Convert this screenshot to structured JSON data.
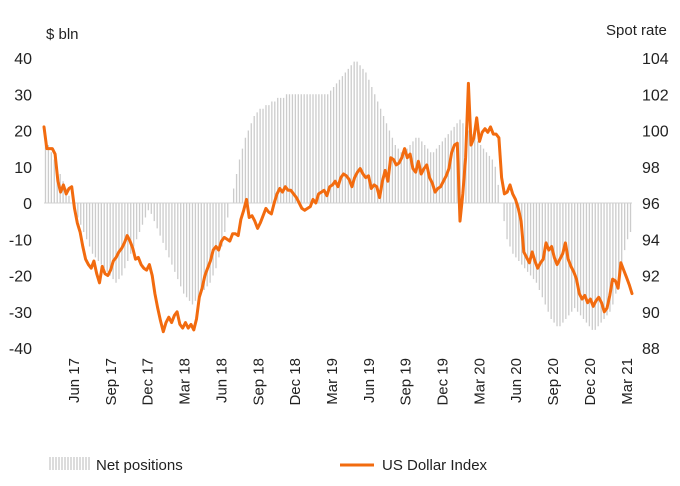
{
  "chart_data": {
    "type": "bar+line",
    "left_axis_label": "$ bln",
    "right_axis_label": "Spot rate",
    "left_ticks": [
      40,
      30,
      20,
      10,
      0,
      -10,
      -20,
      -30,
      -40
    ],
    "right_ticks": [
      104,
      102,
      100,
      98,
      96,
      94,
      92,
      90,
      88
    ],
    "ylim_left": [
      -40,
      40
    ],
    "ylim_right": [
      88,
      104
    ],
    "x_ticks": [
      "Jun 17",
      "Sep 17",
      "Dec 17",
      "Mar 18",
      "Jun 18",
      "Sep 18",
      "Dec 18",
      "Mar 19",
      "Jun 19",
      "Sep 19",
      "Dec 19",
      "Mar 20",
      "Jun 20",
      "Sep 20",
      "Dec 20",
      "Mar 21"
    ],
    "series": [
      {
        "name": "Net positions",
        "type": "bar",
        "axis": "left",
        "color": "#cccccc",
        "values": [
          18,
          16,
          14,
          12,
          10,
          8,
          6,
          4,
          2,
          0,
          -2,
          -4,
          -6,
          -8,
          -10,
          -12,
          -14,
          -15,
          -16,
          -17,
          -18,
          -19,
          -20,
          -21,
          -22,
          -21,
          -20,
          -18,
          -16,
          -14,
          -12,
          -10,
          -8,
          -6,
          -4,
          -2,
          -3,
          -5,
          -7,
          -9,
          -11,
          -13,
          -15,
          -17,
          -19,
          -21,
          -23,
          -25,
          -26,
          -27,
          -28,
          -27,
          -26,
          -25,
          -24,
          -23,
          -22,
          -20,
          -18,
          -15,
          -12,
          -8,
          -4,
          0,
          4,
          8,
          12,
          15,
          18,
          20,
          22,
          24,
          25,
          26,
          26,
          27,
          27,
          28,
          28,
          29,
          29,
          29,
          30,
          30,
          30,
          30,
          30,
          30,
          30,
          30,
          30,
          30,
          30,
          30,
          30,
          30,
          30,
          31,
          32,
          33,
          34,
          35,
          36,
          37,
          38,
          39,
          39,
          38,
          37,
          36,
          34,
          32,
          30,
          28,
          26,
          24,
          22,
          20,
          18,
          16,
          15,
          14,
          14,
          15,
          16,
          17,
          18,
          18,
          17,
          16,
          15,
          14,
          14,
          15,
          16,
          17,
          18,
          19,
          20,
          21,
          22,
          23,
          22,
          21,
          20,
          19,
          18,
          17,
          16,
          15,
          14,
          13,
          12,
          10,
          5,
          0,
          -5,
          -10,
          -12,
          -14,
          -15,
          -16,
          -17,
          -18,
          -19,
          -20,
          -21,
          -22,
          -24,
          -26,
          -28,
          -30,
          -32,
          -33,
          -34,
          -34,
          -33,
          -32,
          -31,
          -30,
          -29,
          -30,
          -31,
          -32,
          -33,
          -34,
          -35,
          -35,
          -34,
          -33,
          -32,
          -31,
          -30,
          -28,
          -25,
          -21,
          -17,
          -13,
          -10,
          -8
        ]
      },
      {
        "name": "US Dollar Index",
        "type": "line",
        "axis": "right",
        "color": "#f26b0f",
        "values": [
          100.2,
          99.0,
          99.0,
          99.0,
          98.7,
          97.2,
          96.6,
          97.0,
          96.5,
          96.8,
          96.9,
          95.7,
          94.9,
          94.4,
          93.6,
          92.9,
          92.6,
          92.4,
          92.8,
          92.1,
          91.6,
          92.5,
          92.1,
          92.0,
          92.3,
          92.8,
          93.0,
          93.3,
          93.5,
          93.8,
          94.2,
          93.9,
          93.5,
          92.9,
          93.0,
          92.6,
          92.4,
          92.3,
          92.6,
          92.0,
          91.0,
          90.2,
          89.5,
          88.9,
          89.4,
          89.7,
          89.4,
          89.8,
          90.0,
          89.3,
          89.1,
          89.4,
          89.1,
          89.3,
          89.0,
          89.6,
          90.8,
          91.3,
          92.0,
          92.4,
          92.8,
          93.4,
          93.6,
          93.4,
          93.9,
          94.1,
          94.0,
          93.9,
          94.3,
          94.3,
          94.2,
          95.1,
          95.6,
          96.2,
          95.2,
          95.3,
          95.0,
          94.6,
          94.9,
          95.3,
          95.7,
          95.5,
          95.4,
          96.0,
          96.5,
          96.8,
          96.6,
          96.9,
          96.7,
          96.7,
          96.5,
          96.3,
          96.0,
          95.7,
          95.6,
          95.7,
          95.8,
          96.2,
          96.0,
          96.5,
          96.6,
          96.7,
          96.4,
          96.9,
          97.0,
          97.2,
          96.9,
          97.4,
          97.6,
          97.5,
          97.3,
          96.9,
          97.4,
          97.7,
          97.9,
          97.6,
          97.4,
          97.5,
          96.8,
          97.0,
          96.9,
          96.3,
          97.2,
          97.8,
          97.2,
          98.5,
          98.4,
          98.1,
          98.2,
          98.5,
          99.0,
          98.5,
          98.7,
          97.9,
          97.7,
          98.3,
          97.6,
          97.9,
          98.1,
          97.4,
          97.1,
          96.6,
          96.8,
          96.9,
          97.2,
          97.5,
          97.9,
          98.8,
          99.2,
          99.3,
          95.0,
          96.5,
          98.5,
          102.6,
          99.2,
          99.6,
          100.7,
          99.4,
          99.9,
          100.1,
          99.9,
          100.2,
          99.8,
          99.8,
          99.6,
          97.4,
          96.5,
          96.6,
          97.0,
          96.5,
          96.2,
          95.7,
          95.0,
          93.3,
          93.0,
          92.7,
          93.3,
          92.8,
          92.4,
          92.7,
          92.9,
          93.8,
          93.4,
          93.6,
          93.0,
          92.6,
          92.9,
          93.2,
          93.8,
          92.9,
          92.5,
          92.2,
          91.8,
          91.0,
          90.7,
          90.9,
          90.5,
          90.7,
          90.3,
          90.6,
          90.8,
          90.5,
          90.0,
          90.2,
          90.9,
          91.8,
          91.7,
          91.3,
          92.7,
          92.3,
          91.9,
          91.5,
          91.0
        ]
      }
    ],
    "legend": [
      {
        "name": "Net positions",
        "swatch": "bars"
      },
      {
        "name": "US Dollar Index",
        "swatch": "line"
      }
    ]
  }
}
